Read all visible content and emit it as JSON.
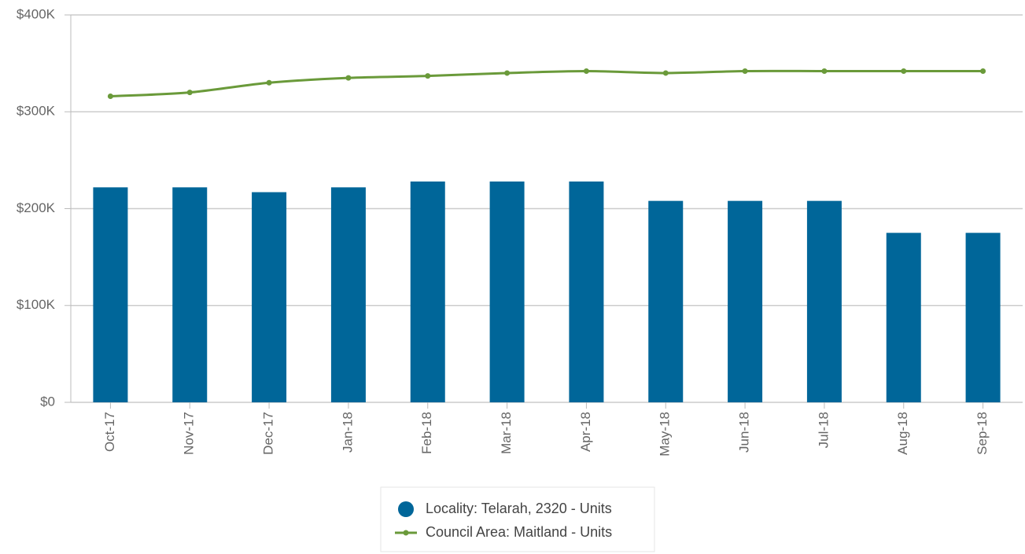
{
  "chart_data": {
    "type": "bar",
    "categories": [
      "Oct-17",
      "Nov-17",
      "Dec-17",
      "Jan-18",
      "Feb-18",
      "Mar-18",
      "Apr-18",
      "May-18",
      "Jun-18",
      "Jul-18",
      "Aug-18",
      "Sep-18"
    ],
    "series": [
      {
        "name": "Locality: Telarah, 2320 - Units",
        "type": "bar",
        "color": "#006699",
        "values": [
          222000,
          222000,
          217000,
          222000,
          228000,
          228000,
          228000,
          208000,
          208000,
          208000,
          175000,
          175000
        ]
      },
      {
        "name": "Council Area: Maitland - Units",
        "type": "line",
        "color": "#6a9a3a",
        "values": [
          316000,
          320000,
          330000,
          335000,
          337000,
          340000,
          342000,
          340000,
          342000,
          342000,
          342000,
          342000
        ]
      }
    ],
    "ylim": [
      0,
      400000
    ],
    "yticks": [
      {
        "value": 0,
        "label": "$0"
      },
      {
        "value": 100000,
        "label": "$100K"
      },
      {
        "value": 200000,
        "label": "$200K"
      },
      {
        "value": 300000,
        "label": "$300K"
      },
      {
        "value": 400000,
        "label": "$400K"
      }
    ],
    "grid": true,
    "legend": "bottom"
  }
}
